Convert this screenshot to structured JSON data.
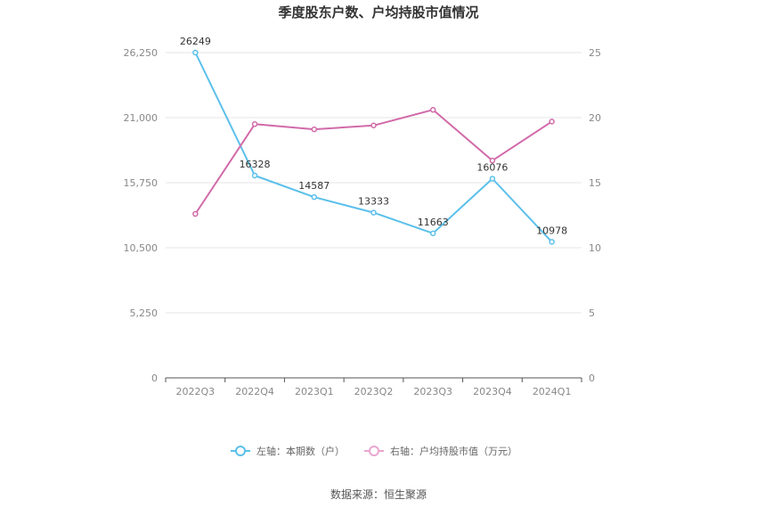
{
  "chart_data": {
    "type": "line",
    "title": "季度股东户数、户均持股市值情况",
    "categories": [
      "2022Q3",
      "2022Q4",
      "2023Q1",
      "2023Q2",
      "2023Q3",
      "2023Q4",
      "2024Q1"
    ],
    "left_axis": {
      "ylim": [
        0,
        26250
      ],
      "ticks": [
        0,
        5250,
        10500,
        15750,
        21000,
        26250
      ],
      "tick_labels": [
        "0",
        "5,250",
        "10,500",
        "15,750",
        "21,000",
        "26,250"
      ]
    },
    "right_axis": {
      "ylim": [
        0,
        25
      ],
      "ticks": [
        0,
        5,
        10,
        15,
        20,
        25
      ],
      "tick_labels": [
        "0",
        "5",
        "10",
        "15",
        "20",
        "25"
      ]
    },
    "series": [
      {
        "name": "左轴：本期数（户）",
        "axis": "left",
        "color": "#5bc0eb",
        "values": [
          26249,
          16328,
          14587,
          13333,
          11663,
          16076,
          10978
        ],
        "labels": [
          "26249",
          "16328",
          "14587",
          "13333",
          "11663",
          "16076",
          "10978"
        ]
      },
      {
        "name": "右轴：户均持股市值（万元）",
        "axis": "right",
        "color": "#d16aa9",
        "legend_color": "#e8a6cf",
        "values": [
          12.6,
          19.5,
          19.1,
          19.4,
          20.6,
          16.7,
          19.7
        ]
      }
    ],
    "grid": true,
    "legend_position": "bottom"
  },
  "source": "数据来源：恒生聚源"
}
